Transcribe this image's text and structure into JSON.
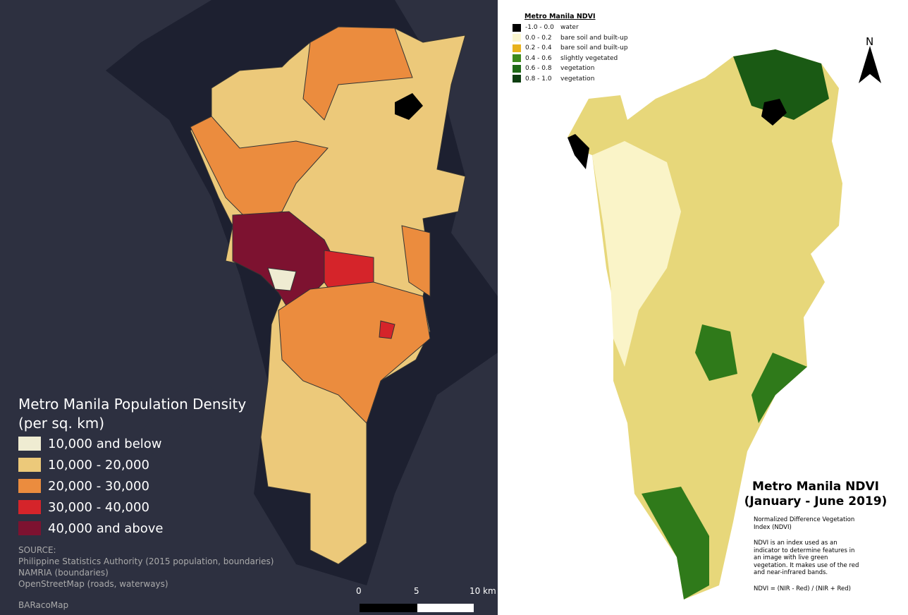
{
  "left": {
    "legend": {
      "title": "Metro Manila Population Density",
      "subtitle": "(per sq. km)",
      "items": [
        {
          "label": "10,000 and below",
          "color": "#efecd2"
        },
        {
          "label": "10,000 - 20,000",
          "color": "#ecc97a"
        },
        {
          "label": "20,000 - 30,000",
          "color": "#eb8c3e"
        },
        {
          "label": "30,000 - 40,000",
          "color": "#d5242a"
        },
        {
          "label": "40,000 and above",
          "color": "#7d1230"
        }
      ]
    },
    "source": {
      "heading": "SOURCE:",
      "lines": [
        "Philippine Statistics Authority (2015 population, boundaries)",
        "NAMRIA (boundaries)",
        "OpenStreetMap (roads, waterways)"
      ]
    },
    "credit": "BARacoMap",
    "scale": [
      "0",
      "5",
      "10 km"
    ]
  },
  "right": {
    "legend": {
      "title": "Metro Manila NDVI",
      "items": [
        {
          "range": "-1.0 - 0.0",
          "label": "water",
          "color": "#000000"
        },
        {
          "range": "0.0 - 0.2",
          "label": "bare soil and built-up",
          "color": "#fbf6cf"
        },
        {
          "range": "0.2 - 0.4",
          "label": "bare soil and built-up",
          "color": "#e8b21c"
        },
        {
          "range": "0.4 - 0.6",
          "label": "slightly vegetated",
          "color": "#3d8a1e"
        },
        {
          "range": "0.6 - 0.8",
          "label": "vegetation",
          "color": "#1f6a16"
        },
        {
          "range": "0.8 - 1.0",
          "label": "vegetation",
          "color": "#0d3e10"
        }
      ]
    },
    "north": "N",
    "title": [
      "Metro Manila NDVI",
      "(January - June 2019)"
    ],
    "subtitle": "Normalized Difference Vegetation Index (NDVI)",
    "description": "NDVI is an index used as an indicator to determine features in an image with live green vegetation. It makes use of the red and near-infrared bands.",
    "formula": "NDVI = (NIR - Red) / (NIR + Red)"
  }
}
